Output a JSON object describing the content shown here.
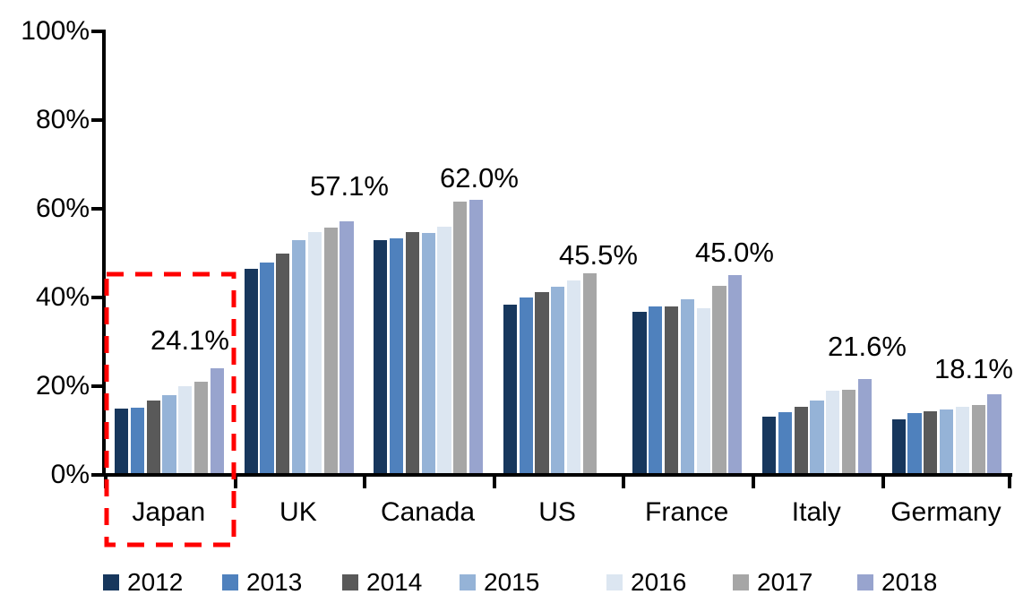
{
  "chart_data": {
    "type": "bar",
    "title": "",
    "xlabel": "",
    "ylabel": "",
    "categories": [
      "Japan",
      "UK",
      "Canada",
      "US",
      "France",
      "Italy",
      "Germany"
    ],
    "series": [
      {
        "name": "2012",
        "color": "#17375D",
        "values": [
          14.9,
          46.4,
          52.9,
          38.4,
          36.7,
          13.2,
          12.5
        ]
      },
      {
        "name": "2013",
        "color": "#4F81BD",
        "values": [
          15.2,
          47.9,
          53.4,
          40.0,
          37.9,
          14.1,
          13.9
        ]
      },
      {
        "name": "2014",
        "color": "#595959",
        "values": [
          16.7,
          49.8,
          54.8,
          41.3,
          37.9,
          15.4,
          14.4
        ]
      },
      {
        "name": "2015",
        "color": "#95B3D7",
        "values": [
          18.0,
          53.0,
          54.6,
          42.4,
          39.5,
          16.8,
          14.8
        ]
      },
      {
        "name": "2016",
        "color": "#DCE6F1",
        "values": [
          19.9,
          54.7,
          56.0,
          43.8,
          37.6,
          18.9,
          15.4
        ]
      },
      {
        "name": "2017",
        "color": "#A6A6A6",
        "values": [
          21.1,
          55.8,
          61.6,
          45.5,
          42.6,
          19.2,
          15.8
        ]
      },
      {
        "name": "2018",
        "color": "#98A4CE",
        "values": [
          24.1,
          57.1,
          62.0,
          null,
          45.0,
          21.6,
          18.1
        ]
      }
    ],
    "data_labels": [
      "24.1%",
      "57.1%",
      "62.0%",
      "45.5%",
      "45.0%",
      "21.6%",
      "18.1%"
    ],
    "y_ticks": [
      "0%",
      "20%",
      "40%",
      "60%",
      "80%",
      "100%"
    ],
    "ylim": [
      0,
      100
    ],
    "grid": false,
    "legend_position": "bottom",
    "highlight": {
      "category": "Japan",
      "style": "red-dashed-rectangle",
      "color": "#FF0000"
    }
  }
}
